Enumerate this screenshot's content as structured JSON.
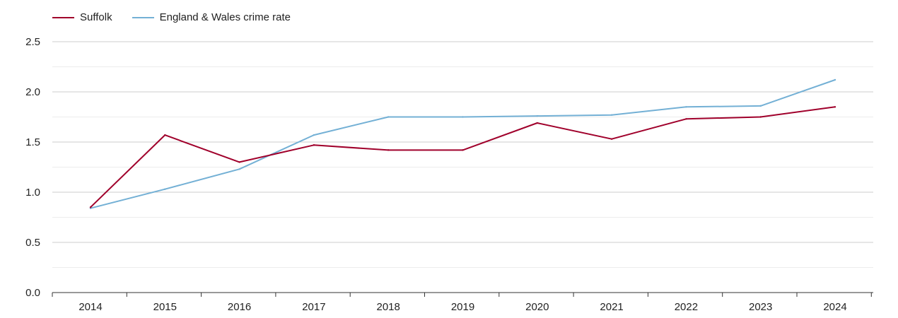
{
  "chart_data": {
    "type": "line",
    "title": "",
    "xlabel": "",
    "ylabel": "",
    "categories": [
      "2014",
      "2015",
      "2016",
      "2017",
      "2018",
      "2019",
      "2020",
      "2021",
      "2022",
      "2023",
      "2024"
    ],
    "ylim": [
      0,
      2.5
    ],
    "yticks": [
      0.0,
      0.5,
      1.0,
      1.5,
      2.0,
      2.5
    ],
    "ytick_labels": [
      "0.0",
      "0.5",
      "1.0",
      "1.5",
      "2.0",
      "2.5"
    ],
    "legend_position": "top-left",
    "series": [
      {
        "name": "Suffolk",
        "color": "#a0002b",
        "values": [
          0.85,
          1.57,
          1.3,
          1.47,
          1.42,
          1.42,
          1.69,
          1.53,
          1.73,
          1.75,
          1.85
        ]
      },
      {
        "name": "England & Wales crime rate",
        "color": "#73b0d5",
        "values": [
          0.84,
          1.03,
          1.23,
          1.57,
          1.75,
          1.75,
          1.76,
          1.77,
          1.85,
          1.86,
          2.12
        ]
      }
    ]
  }
}
